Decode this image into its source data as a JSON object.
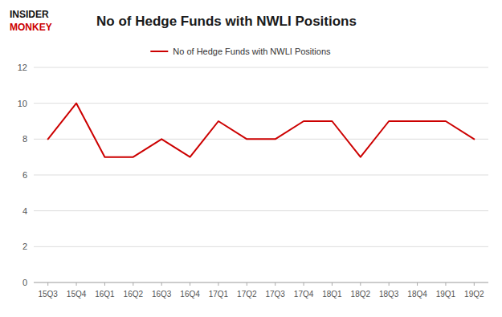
{
  "chart_data": {
    "type": "line",
    "title": "No of Hedge Funds with NWLI Positions",
    "annotations": [
      "INSIDER",
      "MONKEY"
    ],
    "categories": [
      "15Q3",
      "15Q4",
      "16Q1",
      "16Q2",
      "16Q3",
      "16Q4",
      "17Q1",
      "17Q2",
      "17Q3",
      "17Q4",
      "18Q1",
      "18Q2",
      "18Q3",
      "18Q4",
      "19Q1",
      "19Q2"
    ],
    "series": [
      {
        "name": "No of Hedge Funds with NWLI Positions",
        "color": "#cc0000",
        "values": [
          8,
          10,
          7,
          7,
          8,
          7,
          9,
          8,
          8,
          9,
          9,
          7,
          9,
          9,
          9,
          8
        ]
      }
    ],
    "ylim": [
      0,
      12
    ],
    "yticks": [
      0,
      2,
      4,
      6,
      8,
      10,
      12
    ],
    "grid": true,
    "legend": "top"
  }
}
